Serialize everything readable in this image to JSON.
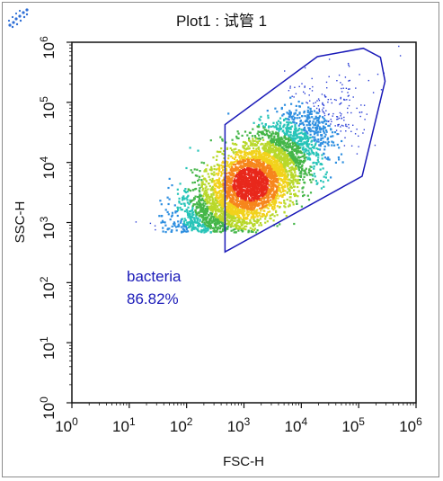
{
  "window": {
    "title": "Plot1 : 试管 1",
    "logo_icon": "dna-dots-icon"
  },
  "chart_data": {
    "type": "scatter",
    "subtype": "flow-cytometry-density-dot-plot",
    "title": "Plot1 : 试管 1",
    "xlabel": "FSC-H",
    "ylabel": "SSC-H",
    "x_scale": "log10",
    "y_scale": "log10",
    "xlim": [
      1,
      1000000
    ],
    "ylim": [
      1,
      1000000
    ],
    "x_ticks": [
      {
        "base": "10",
        "exp": "0",
        "value": 1
      },
      {
        "base": "10",
        "exp": "1",
        "value": 10
      },
      {
        "base": "10",
        "exp": "2",
        "value": 100
      },
      {
        "base": "10",
        "exp": "3",
        "value": 1000
      },
      {
        "base": "10",
        "exp": "4",
        "value": 10000
      },
      {
        "base": "10",
        "exp": "5",
        "value": 100000
      },
      {
        "base": "10",
        "exp": "6",
        "value": 1000000
      }
    ],
    "y_ticks": [
      {
        "base": "10",
        "exp": "0",
        "value": 1
      },
      {
        "base": "10",
        "exp": "1",
        "value": 10
      },
      {
        "base": "10",
        "exp": "2",
        "value": 100
      },
      {
        "base": "10",
        "exp": "3",
        "value": 1000
      },
      {
        "base": "10",
        "exp": "4",
        "value": 10000
      },
      {
        "base": "10",
        "exp": "5",
        "value": 100000
      },
      {
        "base": "10",
        "exp": "6",
        "value": 1000000
      }
    ],
    "grid": false,
    "density_clusters": [
      {
        "center_log": [
          3.1,
          3.65
        ],
        "spread_log": [
          0.95,
          0.85
        ],
        "corr": 0.78,
        "weight": 1.0
      }
    ],
    "density_colors": [
      "#2b3fd6",
      "#2f8fe0",
      "#27c4b8",
      "#45b649",
      "#b8d82a",
      "#f2d21c",
      "#f6861c",
      "#e8281c"
    ],
    "gates": [
      {
        "name": "bacteria",
        "label": "bacteria",
        "percent_label": "86.82%",
        "color": "#1a1ab8",
        "polygon_log": [
          [
            2.67,
            4.63
          ],
          [
            4.28,
            5.76
          ],
          [
            5.08,
            5.9
          ],
          [
            5.38,
            5.75
          ],
          [
            5.46,
            5.35
          ],
          [
            5.06,
            3.77
          ],
          [
            2.67,
            2.51
          ]
        ]
      }
    ],
    "colors": {
      "gate": "#1a1ab8",
      "axis": "#111111",
      "frame": "#8c8c8c"
    }
  }
}
